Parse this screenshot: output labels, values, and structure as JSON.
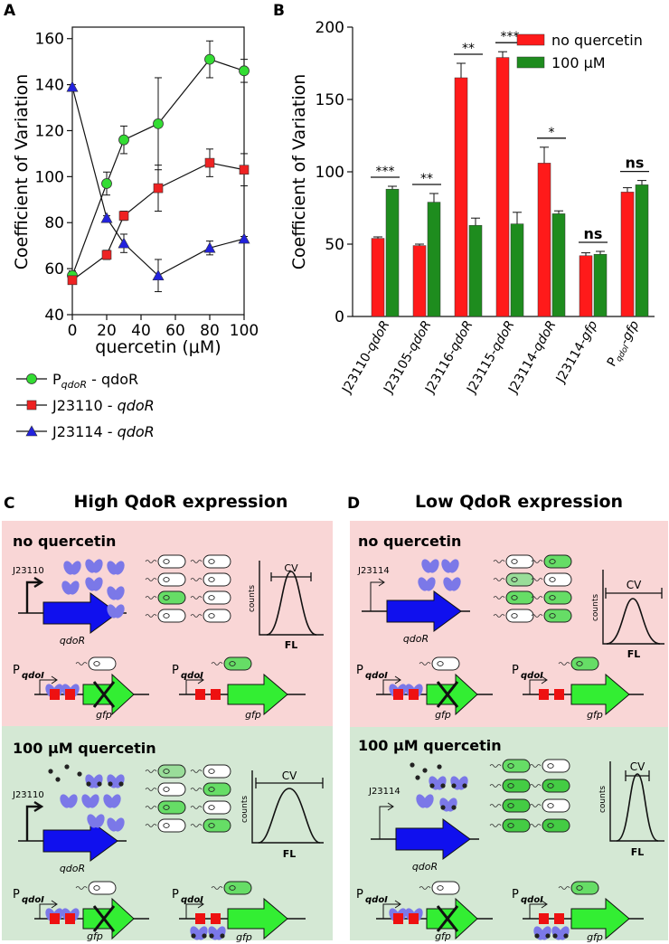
{
  "panels": {
    "a": "A",
    "b": "B",
    "c": "C",
    "d": "D"
  },
  "chart_data": [
    {
      "type": "line",
      "xlabel": "quercetin (μM)",
      "ylabel": "Coefficient of Variation",
      "xlim": [
        0,
        100
      ],
      "ylim": [
        40,
        165
      ],
      "xticks": [
        "0",
        "20",
        "40",
        "60",
        "80",
        "100"
      ],
      "yticks": [
        "40",
        "60",
        "80",
        "100",
        "120",
        "140",
        "160"
      ],
      "x": [
        0,
        20,
        30,
        50,
        80,
        100
      ],
      "series": [
        {
          "name": "PqdoR - qdoR",
          "legend_main": "P",
          "legend_sub": "qdoR",
          "legend_tail": " - qdoR",
          "marker": "circle",
          "color": "#33dd33",
          "values": [
            57,
            97,
            116,
            123,
            151,
            146
          ],
          "err": [
            2,
            5,
            6,
            20,
            8,
            5
          ]
        },
        {
          "name": "J23110 - qdoR",
          "legend_main": "J23110 - ",
          "legend_sub": "",
          "legend_tail": "qdoR",
          "marker": "square",
          "color": "#ee2222",
          "values": [
            55,
            66,
            83,
            95,
            106,
            103
          ],
          "err": [
            1,
            2,
            2,
            10,
            6,
            7
          ]
        },
        {
          "name": "J23114 - qdoR",
          "legend_main": "J23114 - ",
          "legend_sub": "",
          "legend_tail": "qdoR",
          "marker": "triangle",
          "color": "#2222dd",
          "values": [
            139,
            82,
            71,
            57,
            69,
            73
          ],
          "err": [
            1,
            1,
            4,
            7,
            3,
            1
          ]
        }
      ]
    },
    {
      "type": "bar",
      "ylabel": "Coefficient of Variation",
      "ylim": [
        0,
        200
      ],
      "yticks": [
        "0",
        "50",
        "100",
        "150",
        "200"
      ],
      "categories": [
        "J23110-qdoR",
        "J23105-qdoR",
        "J23116-qdoR",
        "J23115-qdoR",
        "J23114-qdoR",
        "J23114-gfp",
        "PqdoI-gfp"
      ],
      "series": [
        {
          "name": "no quercetin",
          "color": "#ff1a1a",
          "values": [
            54,
            49,
            165,
            179,
            106,
            42,
            86
          ],
          "err": [
            1,
            1,
            10,
            4,
            11,
            2,
            3
          ]
        },
        {
          "name": "100 μM",
          "color": "#1e8c1e",
          "values": [
            88,
            79,
            63,
            64,
            71,
            43,
            91
          ],
          "err": [
            2,
            6,
            5,
            8,
            2,
            2,
            3
          ]
        }
      ],
      "significance": [
        "***",
        "**",
        "**",
        "***",
        "*",
        "ns",
        "ns"
      ]
    }
  ],
  "diagram": {
    "c_title": "High QdoR expression",
    "d_title": "Low QdoR expression",
    "no_quercetin": "no quercetin",
    "with_quercetin": "100 μM quercetin",
    "promoter_c": "J23110",
    "promoter_d": "J23114",
    "gene_label": "qdoR",
    "pqdoi_main": "P",
    "pqdoi_sub": "qdoI",
    "gfp_label": "gfp",
    "cv": "CV",
    "counts": "counts",
    "fl": "FL"
  }
}
